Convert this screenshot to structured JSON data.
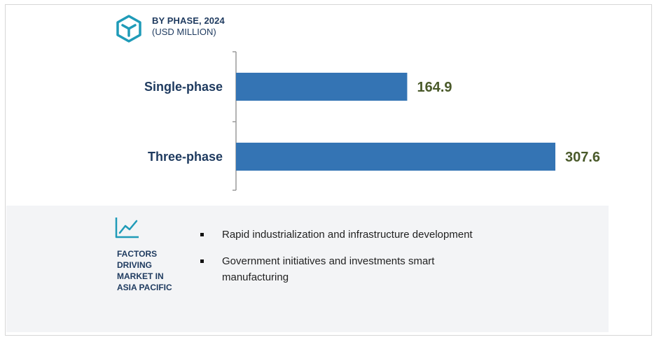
{
  "header": {
    "title": "BY PHASE, 2024",
    "subtitle": "(USD MILLION)",
    "icon": "cube-icon",
    "icon_color": "#1f9bb8"
  },
  "chart_data": {
    "type": "bar",
    "orientation": "horizontal",
    "categories": [
      "Single-phase",
      "Three-phase"
    ],
    "values": [
      164.9,
      307.6
    ],
    "value_labels": [
      "164.9",
      "307.6"
    ],
    "title": "BY PHASE, 2024",
    "subtitle": "(USD MILLION)",
    "xlim": [
      0,
      307.6
    ],
    "bar_color": "#3474b4",
    "grid": false
  },
  "factors": {
    "icon": "line-chart-icon",
    "heading_lines": [
      "FACTORS DRIVING",
      "MARKET IN",
      "ASIA PACIFIC"
    ],
    "items": [
      "Rapid industrialization and infrastructure development",
      "Government initiatives and investments smart manufacturing"
    ]
  }
}
